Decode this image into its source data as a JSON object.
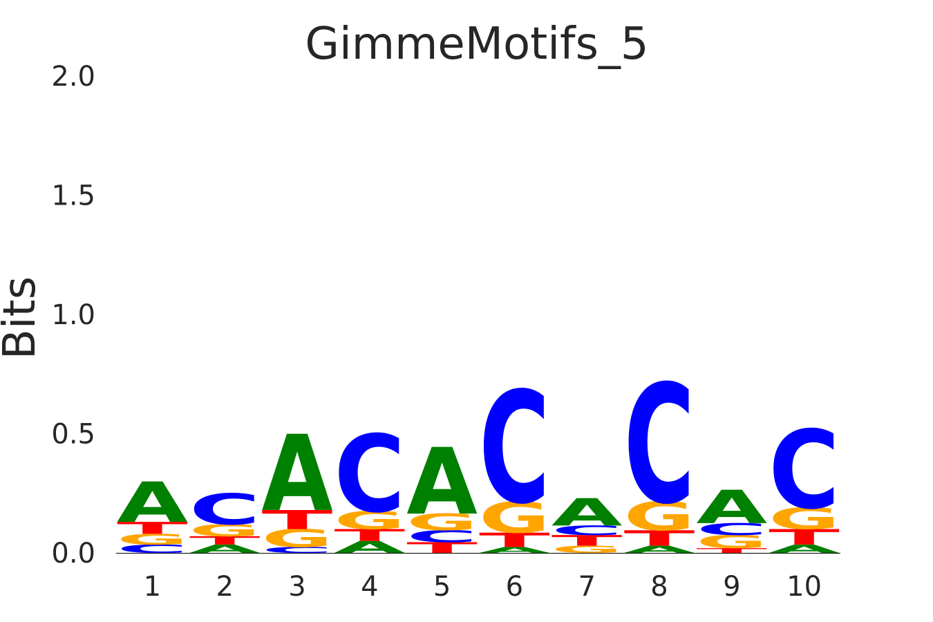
{
  "chart_data": {
    "type": "sequence-logo",
    "title": "GimmeMotifs_5",
    "xlabel": "",
    "ylabel": "Bits",
    "ylim": [
      0,
      2
    ],
    "yticks": [
      "0.0",
      "0.5",
      "1.0",
      "1.5",
      "2.0"
    ],
    "grid": false,
    "legend": "none",
    "letter_colors": {
      "A": "#008000",
      "C": "#0000ff",
      "G": "#ffa500",
      "T": "#ff0000"
    },
    "positions": [
      {
        "label": "1",
        "stack": [
          [
            "C",
            0.035
          ],
          [
            "G",
            0.045
          ],
          [
            "T",
            0.05
          ],
          [
            "A",
            0.17
          ]
        ]
      },
      {
        "label": "2",
        "stack": [
          [
            "A",
            0.035
          ],
          [
            "T",
            0.035
          ],
          [
            "G",
            0.05
          ],
          [
            "C",
            0.13
          ]
        ]
      },
      {
        "label": "3",
        "stack": [
          [
            "C",
            0.025
          ],
          [
            "G",
            0.075
          ],
          [
            "T",
            0.08
          ],
          [
            "A",
            0.32
          ]
        ]
      },
      {
        "label": "4",
        "stack": [
          [
            "A",
            0.05
          ],
          [
            "T",
            0.05
          ],
          [
            "G",
            0.075
          ],
          [
            "C",
            0.325
          ]
        ]
      },
      {
        "label": "5",
        "stack": [
          [
            "T",
            0.045
          ],
          [
            "C",
            0.05
          ],
          [
            "G",
            0.07
          ],
          [
            "A",
            0.28
          ]
        ]
      },
      {
        "label": "6",
        "stack": [
          [
            "A",
            0.025
          ],
          [
            "T",
            0.06
          ],
          [
            "G",
            0.13
          ],
          [
            "C",
            0.47
          ]
        ]
      },
      {
        "label": "7",
        "stack": [
          [
            "G",
            0.03
          ],
          [
            "T",
            0.045
          ],
          [
            "C",
            0.04
          ],
          [
            "A",
            0.115
          ]
        ]
      },
      {
        "label": "8",
        "stack": [
          [
            "A",
            0.03
          ],
          [
            "T",
            0.065
          ],
          [
            "G",
            0.12
          ],
          [
            "C",
            0.5
          ]
        ]
      },
      {
        "label": "9",
        "stack": [
          [
            "T",
            0.02
          ],
          [
            "G",
            0.055
          ],
          [
            "C",
            0.05
          ],
          [
            "A",
            0.14
          ]
        ]
      },
      {
        "label": "10",
        "stack": [
          [
            "A",
            0.035
          ],
          [
            "T",
            0.065
          ],
          [
            "G",
            0.09
          ],
          [
            "C",
            0.33
          ]
        ]
      }
    ]
  }
}
